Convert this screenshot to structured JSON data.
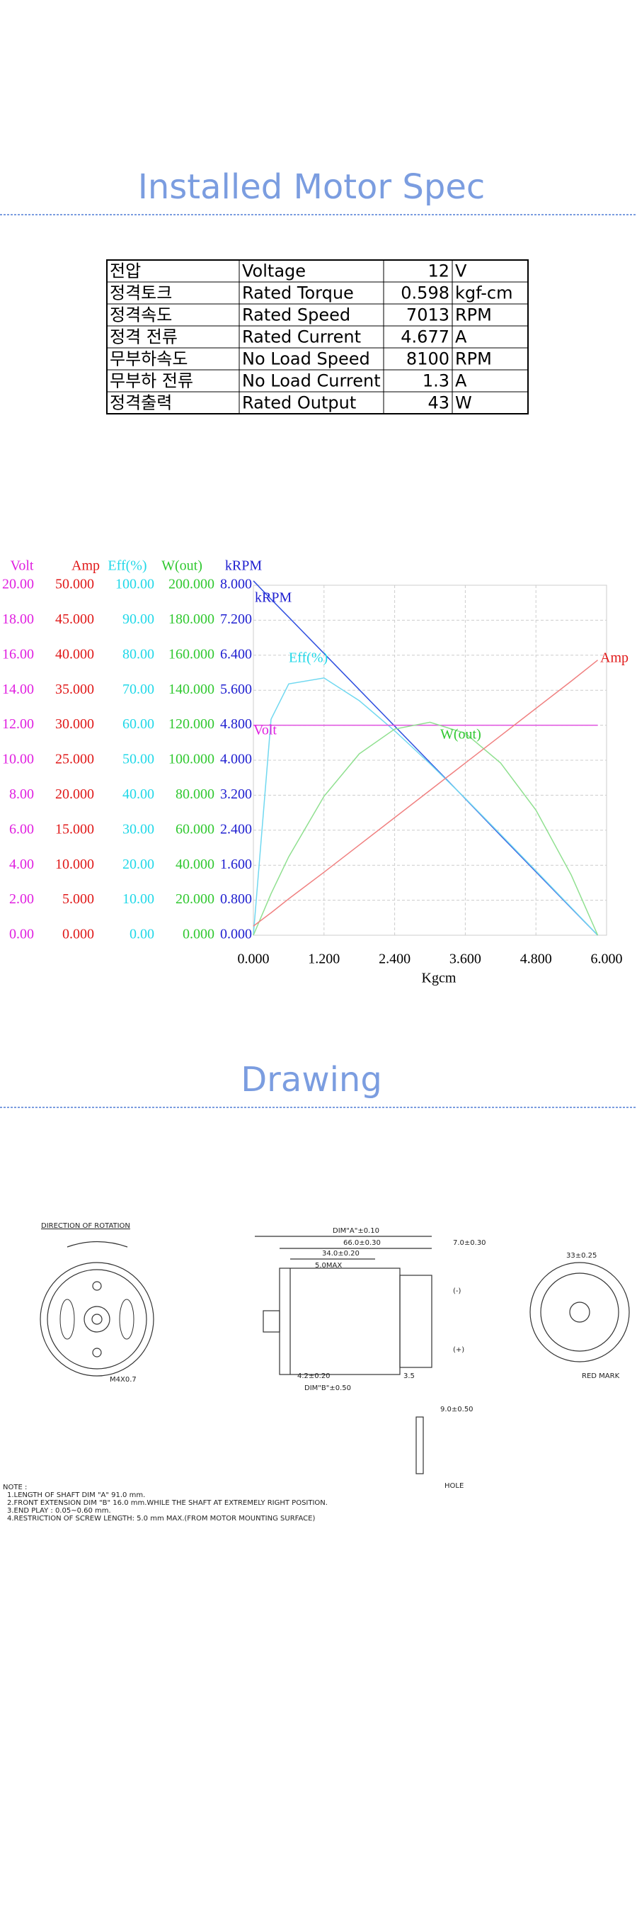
{
  "spec": {
    "title": "Installed Motor Spec",
    "rows": [
      [
        "전압",
        "Voltage",
        12,
        "V"
      ],
      [
        "정격토크",
        "Rated Torque",
        0.598,
        "kgf-cm"
      ],
      [
        "정격속도",
        "Rated Speed",
        7013,
        "RPM"
      ],
      [
        "정격 전류",
        "Rated Current",
        4.677,
        "A"
      ],
      [
        "무부하속도",
        "No Load Speed",
        8100,
        "RPM"
      ],
      [
        "무부하 전류",
        "No Load Current",
        1.3,
        "A"
      ],
      [
        "정격출력",
        "Rated Output",
        43,
        "W"
      ]
    ]
  },
  "chart_data": {
    "type": "line",
    "xlabel": "Kgcm",
    "x": [
      0,
      0.3,
      0.6,
      1.2,
      1.8,
      2.4,
      3.0,
      3.6,
      4.2,
      4.8,
      5.4,
      5.85
    ],
    "xlim": [
      0,
      6
    ],
    "xticks": [
      {
        "value": 0,
        "label": "0.000"
      },
      {
        "value": 1.2,
        "label": "1.200"
      },
      {
        "value": 2.4,
        "label": "2.400"
      },
      {
        "value": 3.6,
        "label": "3.600"
      },
      {
        "value": 4.8,
        "label": "4.800"
      },
      {
        "value": 6,
        "label": "6.000"
      }
    ],
    "grid": true,
    "y_axes": [
      {
        "label": "Volt",
        "color": "#e020e0",
        "ylim": [
          0,
          20
        ],
        "yticks": [
          {
            "value": 0,
            "label": "0.00"
          },
          {
            "value": 2,
            "label": "2.00"
          },
          {
            "value": 4,
            "label": "4.00"
          },
          {
            "value": 6,
            "label": "6.00"
          },
          {
            "value": 8,
            "label": "8.00"
          },
          {
            "value": 10,
            "label": "10.00"
          },
          {
            "value": 12,
            "label": "12.00"
          },
          {
            "value": 14,
            "label": "14.00"
          },
          {
            "value": 16,
            "label": "16.00"
          },
          {
            "value": 18,
            "label": "18.00"
          },
          {
            "value": 20,
            "label": "20.00"
          }
        ]
      },
      {
        "label": "Amp",
        "color": "#e01818",
        "ylim": [
          0,
          50
        ],
        "yticks": [
          {
            "value": 0,
            "label": "0.000"
          },
          {
            "value": 5,
            "label": "5.000"
          },
          {
            "value": 10,
            "label": "10.000"
          },
          {
            "value": 15,
            "label": "15.000"
          },
          {
            "value": 20,
            "label": "20.000"
          },
          {
            "value": 25,
            "label": "25.000"
          },
          {
            "value": 30,
            "label": "30.000"
          },
          {
            "value": 35,
            "label": "35.000"
          },
          {
            "value": 40,
            "label": "40.000"
          },
          {
            "value": 45,
            "label": "45.000"
          },
          {
            "value": 50,
            "label": "50.000"
          }
        ]
      },
      {
        "label": "Eff(%)",
        "color": "#20d8e8",
        "ylim": [
          0,
          100
        ],
        "yticks": [
          {
            "value": 0,
            "label": "0.00"
          },
          {
            "value": 10,
            "label": "10.00"
          },
          {
            "value": 20,
            "label": "20.00"
          },
          {
            "value": 30,
            "label": "30.00"
          },
          {
            "value": 40,
            "label": "40.00"
          },
          {
            "value": 50,
            "label": "50.00"
          },
          {
            "value": 60,
            "label": "60.00"
          },
          {
            "value": 70,
            "label": "70.00"
          },
          {
            "value": 80,
            "label": "80.00"
          },
          {
            "value": 90,
            "label": "90.00"
          },
          {
            "value": 100,
            "label": "100.00"
          }
        ]
      },
      {
        "label": "W(out)",
        "color": "#30c830",
        "ylim": [
          0,
          200
        ],
        "yticks": [
          {
            "value": 0,
            "label": "0.000"
          },
          {
            "value": 20,
            "label": "20.000"
          },
          {
            "value": 40,
            "label": "40.000"
          },
          {
            "value": 60,
            "label": "60.000"
          },
          {
            "value": 80,
            "label": "80.000"
          },
          {
            "value": 100,
            "label": "100.000"
          },
          {
            "value": 120,
            "label": "120.000"
          },
          {
            "value": 140,
            "label": "140.000"
          },
          {
            "value": 160,
            "label": "160.000"
          },
          {
            "value": 180,
            "label": "180.000"
          },
          {
            "value": 200,
            "label": "200.000"
          }
        ]
      },
      {
        "label": "kRPM",
        "color": "#2020d0",
        "ylim": [
          0,
          8
        ],
        "yticks": [
          {
            "value": 0,
            "label": "0.000"
          },
          {
            "value": 0.8,
            "label": "0.800"
          },
          {
            "value": 1.6,
            "label": "1.600"
          },
          {
            "value": 2.4,
            "label": "2.400"
          },
          {
            "value": 3.2,
            "label": "3.200"
          },
          {
            "value": 4,
            "label": "4.000"
          },
          {
            "value": 4.8,
            "label": "4.800"
          },
          {
            "value": 5.6,
            "label": "5.600"
          },
          {
            "value": 6.4,
            "label": "6.400"
          },
          {
            "value": 7.2,
            "label": "7.200"
          },
          {
            "value": 8,
            "label": "8.000"
          }
        ]
      }
    ],
    "series": [
      {
        "name": "kRPM",
        "axis": 4,
        "color": "#3050e0",
        "values": [
          8.1,
          7.68,
          7.27,
          6.44,
          5.61,
          4.78,
          3.95,
          3.12,
          2.28,
          1.45,
          0.62,
          0
        ]
      },
      {
        "name": "Eff(%)",
        "axis": 2,
        "color": "#70d8f0",
        "values": [
          0,
          61.7,
          71.8,
          73.5,
          67,
          58.4,
          49,
          39.1,
          28.8,
          18.4,
          7.9,
          0
        ]
      },
      {
        "name": "Volt",
        "axis": 0,
        "color": "#e050e0",
        "values": [
          12,
          12,
          12,
          12,
          12,
          12,
          12,
          12,
          12,
          12,
          12,
          12
        ]
      },
      {
        "name": "W(out)",
        "axis": 3,
        "color": "#90e090",
        "values": [
          0,
          23.7,
          44.8,
          79.4,
          103.7,
          117.8,
          121.7,
          115.4,
          98.4,
          71.5,
          34.4,
          0
        ]
      },
      {
        "name": "Amp",
        "axis": 1,
        "color": "#f08080",
        "values": [
          1.3,
          3.2,
          5.2,
          9.0,
          12.9,
          16.8,
          20.7,
          24.6,
          28.5,
          32.4,
          36.3,
          39.3
        ]
      }
    ]
  },
  "drawing": {
    "title": "Drawing",
    "rotation": "DIRECTION OF ROTATION",
    "screw": "M4X0.7",
    "dims": [
      "DIM\"A\"±0.10",
      "66.0±0.30",
      "34.0±0.20",
      "5.0MAX",
      "7.0±0.30",
      "4.2±0.20",
      "DIM\"B\"±0.50",
      "3.5",
      "(-)",
      "(+)",
      "33±0.25",
      "RED MARK",
      "9.0±0.50",
      "HOLE"
    ],
    "notes": [
      "NOTE :",
      "1.LENGTH OF SHAFT DIM \"A\" 91.0 mm.",
      "2.FRONT EXTENSION DIM \"B\" 16.0 mm.WHILE THE SHAFT AT EXTREMELY RIGHT POSITION.",
      "3.END PLAY : 0.05~0.60 mm.",
      "4.RESTRICTION OF SCREW LENGTH: 5.0 mm MAX.(FROM MOTOR MOUNTING SURFACE)"
    ]
  }
}
